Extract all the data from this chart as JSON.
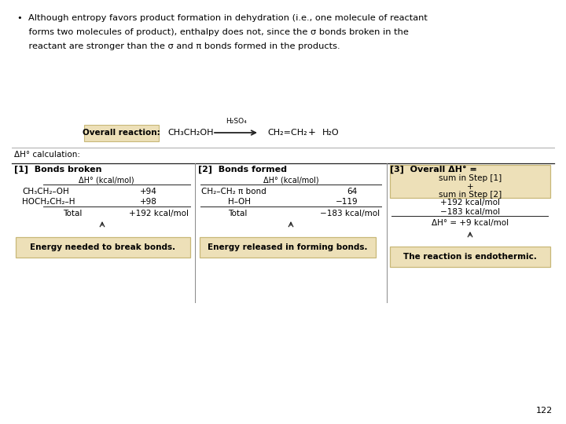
{
  "bg_color": "#ffffff",
  "page_number": "122",
  "bullet_line1": "•  Although entropy favors product formation in dehydration (i.e., one molecule of reactant",
  "bullet_line2": "    forms two molecules of product), enthalpy does not, since the σ bonds broken in the",
  "bullet_line3": "    reactant are stronger than the σ and π bonds formed in the products.",
  "overall_reaction_label": "Overall reaction:",
  "dh_calc_label": "ΔH° calculation:",
  "col1_header": "[1]  Bonds broken",
  "col2_header": "[2]  Bonds formed",
  "col3_header": "[3]  Overall ΔH° =",
  "col1_subheader": "ΔH° (kcal/mol)",
  "col2_subheader": "ΔH° (kcal/mol)",
  "col1_row1_label": "CH₃CH₂–OH",
  "col1_row1_val": "+94",
  "col1_row2_label": "HOCH₂CH₂–H",
  "col1_row2_val": "+98",
  "col1_total_label": "Total",
  "col1_total_val": "+192 kcal/mol",
  "col2_row1_label": "CH₂–CH₂ π bond",
  "col2_row1_val": "64",
  "col2_row2_label": "H–OH",
  "col2_row2_val": "−119",
  "col2_total_label": "Total",
  "col2_total_val": "−183 kcal/mol",
  "col3_sum_line1": "sum in Step [1]",
  "col3_sum_plus": "+",
  "col3_sum_line2": "sum in Step [2]",
  "col3_val1": "+192 kcal/mol",
  "col3_val2": "−183 kcal/mol",
  "col3_result": "ΔH° = +9 kcal/mol",
  "box1_text": "Energy needed to break bonds.",
  "box2_text": "Energy released in forming bonds.",
  "box3_text": "The reaction is endothermic.",
  "tan_color": "#ede0b8",
  "tan_border": "#c8b878",
  "line_color": "#222222",
  "text_color": "#000000",
  "col_div_color": "#888888",
  "sep_line_color": "#aaaaaa",
  "reactant": "CH₃CH₂OH",
  "catalyst": "H₂SO₄",
  "product1": "CH₂=CH₂",
  "product2": "H₂O"
}
